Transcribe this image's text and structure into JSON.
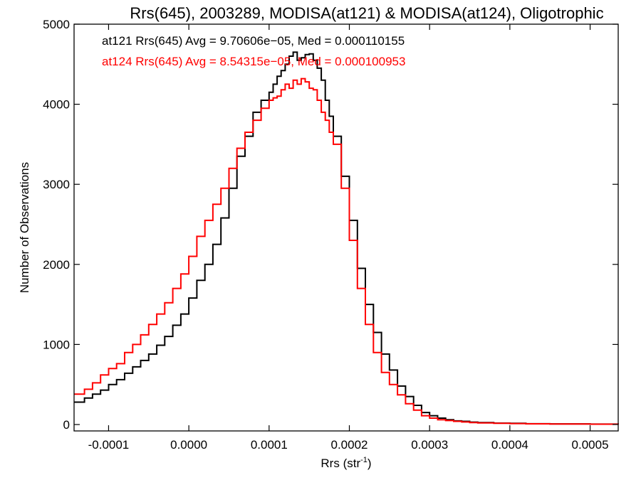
{
  "chart_data": {
    "type": "line",
    "subtype": "step-histogram",
    "title": "Rrs(645), 2003289, MODISA(at121) & MODISA(at124), Oligotrophic",
    "xlabel": "Rrs (str",
    "xlabel_sup": "-1",
    "xlabel_close": ")",
    "ylabel": "Number of Observations",
    "xlim": [
      -0.000143,
      0.000535
    ],
    "ylim": [
      -80,
      5000
    ],
    "x_ticks": [
      -0.0001,
      0.0,
      0.0001,
      0.0002,
      0.0003,
      0.0004,
      0.0005
    ],
    "x_tick_labels": [
      "-0.0001",
      "0.0000",
      "0.0001",
      "0.0002",
      "0.0003",
      "0.0004",
      "0.0005"
    ],
    "y_ticks": [
      0,
      1000,
      2000,
      3000,
      4000,
      5000
    ],
    "y_tick_labels": [
      "0",
      "1000",
      "2000",
      "3000",
      "4000",
      "5000"
    ],
    "grid": false,
    "legend_position": "top-left, inside plot",
    "series": [
      {
        "name": "at121",
        "legend_text": "at121 Rrs(645) Avg = 9.70606e−05, Med = 0.000110155",
        "color": "#000000",
        "x": [
          -0.000143,
          -0.00013,
          -0.00012,
          -0.00011,
          -0.0001,
          -9e-05,
          -8e-05,
          -7e-05,
          -6e-05,
          -5e-05,
          -4e-05,
          -3e-05,
          -2e-05,
          -1e-05,
          0.0,
          1e-05,
          2e-05,
          3e-05,
          4e-05,
          5e-05,
          6e-05,
          7e-05,
          8e-05,
          9e-05,
          0.0001,
          0.000105,
          0.00011,
          0.000115,
          0.00012,
          0.000125,
          0.00013,
          0.000135,
          0.00014,
          0.000145,
          0.00015,
          0.000155,
          0.00016,
          0.000165,
          0.00017,
          0.000175,
          0.00018,
          0.00019,
          0.0002,
          0.00021,
          0.00022,
          0.00023,
          0.00024,
          0.00025,
          0.00026,
          0.00027,
          0.00028,
          0.00029,
          0.0003,
          0.00031,
          0.00032,
          0.00033,
          0.00034,
          0.00035,
          0.00036,
          0.00038,
          0.0004,
          0.00042,
          0.00045,
          0.0005,
          0.000535
        ],
        "y": [
          280,
          330,
          380,
          430,
          500,
          560,
          640,
          720,
          800,
          880,
          990,
          1100,
          1240,
          1380,
          1580,
          1800,
          2000,
          2250,
          2580,
          2950,
          3350,
          3600,
          3900,
          4050,
          4150,
          4250,
          4350,
          4420,
          4500,
          4600,
          4650,
          4550,
          4580,
          4620,
          4630,
          4550,
          4450,
          4300,
          4050,
          3850,
          3600,
          3100,
          2550,
          1950,
          1500,
          1150,
          880,
          680,
          480,
          350,
          240,
          150,
          110,
          80,
          60,
          45,
          40,
          30,
          25,
          18,
          15,
          10,
          8,
          5,
          3
        ]
      },
      {
        "name": "at124",
        "legend_text": "at124 Rrs(645) Avg = 8.54315e−05, Med = 0.000100953",
        "color": "#ff0000",
        "x": [
          -0.000143,
          -0.00013,
          -0.00012,
          -0.00011,
          -0.0001,
          -9e-05,
          -8e-05,
          -7e-05,
          -6e-05,
          -5e-05,
          -4e-05,
          -3e-05,
          -2e-05,
          -1e-05,
          0.0,
          1e-05,
          2e-05,
          3e-05,
          4e-05,
          5e-05,
          6e-05,
          7e-05,
          8e-05,
          9e-05,
          0.0001,
          0.000105,
          0.00011,
          0.000115,
          0.00012,
          0.000125,
          0.00013,
          0.000135,
          0.00014,
          0.000145,
          0.00015,
          0.000155,
          0.00016,
          0.000165,
          0.00017,
          0.000175,
          0.00018,
          0.00019,
          0.0002,
          0.00021,
          0.00022,
          0.00023,
          0.00024,
          0.00025,
          0.00026,
          0.00027,
          0.00028,
          0.00029,
          0.0003,
          0.00031,
          0.00032,
          0.00033,
          0.00034,
          0.00035,
          0.00036,
          0.00038,
          0.0004,
          0.00042,
          0.00045,
          0.0005,
          0.000535
        ],
        "y": [
          380,
          440,
          520,
          620,
          700,
          760,
          900,
          1000,
          1120,
          1250,
          1380,
          1520,
          1700,
          1880,
          2100,
          2350,
          2550,
          2750,
          2950,
          3200,
          3450,
          3650,
          3800,
          3950,
          4050,
          4080,
          4100,
          4180,
          4250,
          4200,
          4300,
          4250,
          4320,
          4280,
          4200,
          4180,
          4050,
          3900,
          3800,
          3650,
          3500,
          2950,
          2300,
          1700,
          1250,
          900,
          650,
          500,
          370,
          260,
          180,
          110,
          80,
          60,
          50,
          40,
          32,
          25,
          20,
          15,
          12,
          9,
          6,
          4,
          2
        ]
      }
    ]
  }
}
